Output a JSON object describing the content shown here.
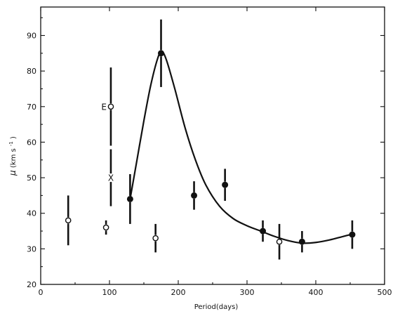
{
  "chart_data": {
    "type": "scatter",
    "xlabel": "Period(days)",
    "ylabel_main": "μ",
    "ylabel_unit": "(km s",
    "ylabel_sup": "-1",
    "ylabel_close": ")",
    "xlim": [
      0,
      500
    ],
    "ylim": [
      20,
      98
    ],
    "x_ticks": [
      0,
      100,
      200,
      300,
      400,
      500
    ],
    "y_ticks": [
      20,
      30,
      40,
      50,
      60,
      70,
      80,
      90
    ],
    "grid": false,
    "points": [
      {
        "x": 40,
        "y": 38,
        "err": 7,
        "style": "open"
      },
      {
        "x": 95,
        "y": 36,
        "err": 2,
        "style": "open"
      },
      {
        "x": 102,
        "y": 70,
        "err": 11,
        "style": "open",
        "label": "E"
      },
      {
        "x": 102,
        "y": 50,
        "err": 8,
        "style": "cross",
        "label": "X"
      },
      {
        "x": 130,
        "y": 44,
        "err": 7,
        "style": "filled"
      },
      {
        "x": 167,
        "y": 33,
        "err": 4,
        "style": "open"
      },
      {
        "x": 175,
        "y": 85,
        "err": 9.5,
        "style": "filled"
      },
      {
        "x": 223,
        "y": 45,
        "err": 4,
        "style": "filled"
      },
      {
        "x": 268,
        "y": 48,
        "err": 4.5,
        "style": "filled"
      },
      {
        "x": 323,
        "y": 35,
        "err": 3,
        "style": "filled"
      },
      {
        "x": 347,
        "y": 32,
        "err": 5,
        "style": "open"
      },
      {
        "x": 380,
        "y": 32,
        "err": 3,
        "style": "filled"
      },
      {
        "x": 453,
        "y": 34,
        "err": 4,
        "style": "filled"
      }
    ],
    "curve": [
      [
        130,
        44
      ],
      [
        140,
        55
      ],
      [
        150,
        66
      ],
      [
        160,
        76
      ],
      [
        170,
        83.5
      ],
      [
        176,
        85.5
      ],
      [
        183,
        83
      ],
      [
        195,
        75
      ],
      [
        210,
        64
      ],
      [
        225,
        55
      ],
      [
        240,
        48
      ],
      [
        260,
        42
      ],
      [
        280,
        38.5
      ],
      [
        300,
        36.5
      ],
      [
        320,
        35
      ],
      [
        340,
        33.5
      ],
      [
        360,
        32.3
      ],
      [
        380,
        31.6
      ],
      [
        400,
        31.8
      ],
      [
        420,
        32.5
      ],
      [
        440,
        33.5
      ],
      [
        455,
        34.2
      ]
    ]
  }
}
